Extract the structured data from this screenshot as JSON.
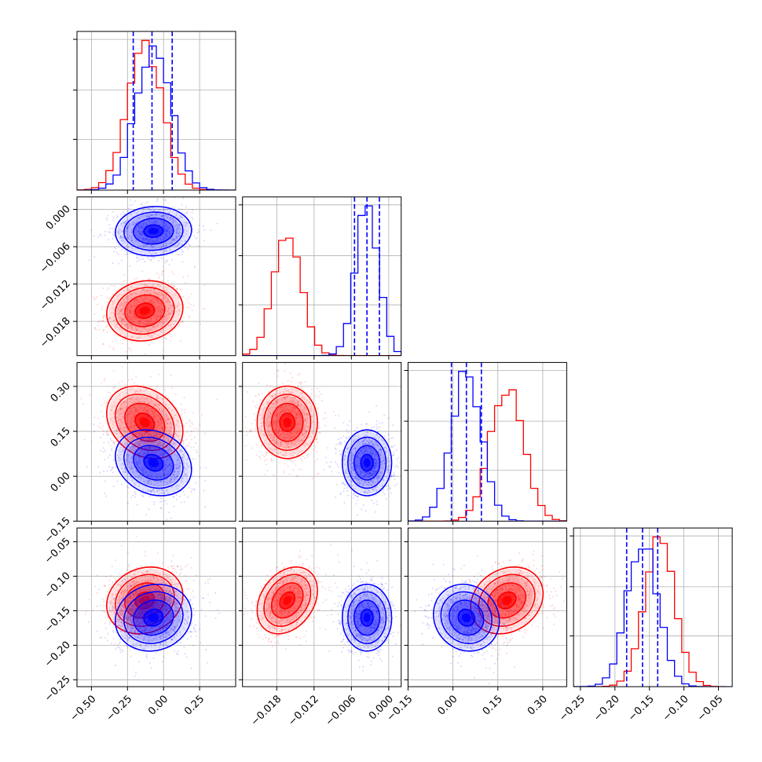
{
  "chart_data": {
    "type": "corner",
    "grid": true,
    "series": [
      {
        "color": "#ff0000",
        "mean": [
          -0.13,
          -0.0163,
          0.18,
          -0.135
        ],
        "sd": [
          0.12,
          0.0022,
          0.055,
          0.022
        ],
        "corr": [
          [
            1,
            0.1,
            -0.25,
            0.15
          ],
          [
            0.1,
            1,
            0,
            0.3
          ],
          [
            -0.25,
            0,
            1,
            0.2
          ],
          [
            0.15,
            0.3,
            0.2,
            1
          ]
        ]
      },
      {
        "color": "#0000ff",
        "mean": [
          -0.07,
          -0.0035,
          0.045,
          -0.16
        ],
        "sd": [
          0.12,
          0.0018,
          0.05,
          0.022
        ],
        "corr": [
          [
            1,
            0.05,
            -0.2,
            0.1
          ],
          [
            0.05,
            1,
            0,
            0
          ],
          [
            -0.2,
            0,
            1,
            -0.1
          ],
          [
            0.1,
            0,
            -0.1,
            1
          ]
        ]
      }
    ],
    "quantile_lines": [
      [
        -0.21,
        -0.08,
        0.06
      ],
      [
        -0.0055,
        -0.0035,
        -0.0015
      ],
      [
        -0.005,
        0.045,
        0.095
      ],
      [
        -0.183,
        -0.16,
        -0.138
      ]
    ],
    "params": [
      {
        "range": [
          -0.6,
          0.5
        ],
        "ticks": [
          "−0.50",
          "−0.25",
          "0.00",
          "0.25"
        ],
        "tick_values": [
          -0.5,
          -0.25,
          0.0,
          0.25
        ]
      },
      {
        "range": [
          -0.0235,
          0.002
        ],
        "ticks": [
          "−0.018",
          "−0.012",
          "−0.006",
          "0.000"
        ],
        "tick_values": [
          -0.018,
          -0.012,
          -0.006,
          0.0
        ]
      },
      {
        "range": [
          -0.15,
          0.38
        ],
        "ticks": [
          "−0.15",
          "0.00",
          "0.15",
          "0.30"
        ],
        "tick_values": [
          -0.15,
          0.0,
          0.15,
          0.3
        ]
      },
      {
        "range": [
          -0.26,
          -0.03
        ],
        "ticks": [
          "−0.25",
          "−0.20",
          "−0.15",
          "−0.10",
          "−0.05"
        ],
        "tick_values": [
          -0.25,
          -0.2,
          -0.15,
          -0.1,
          -0.05
        ]
      }
    ]
  }
}
